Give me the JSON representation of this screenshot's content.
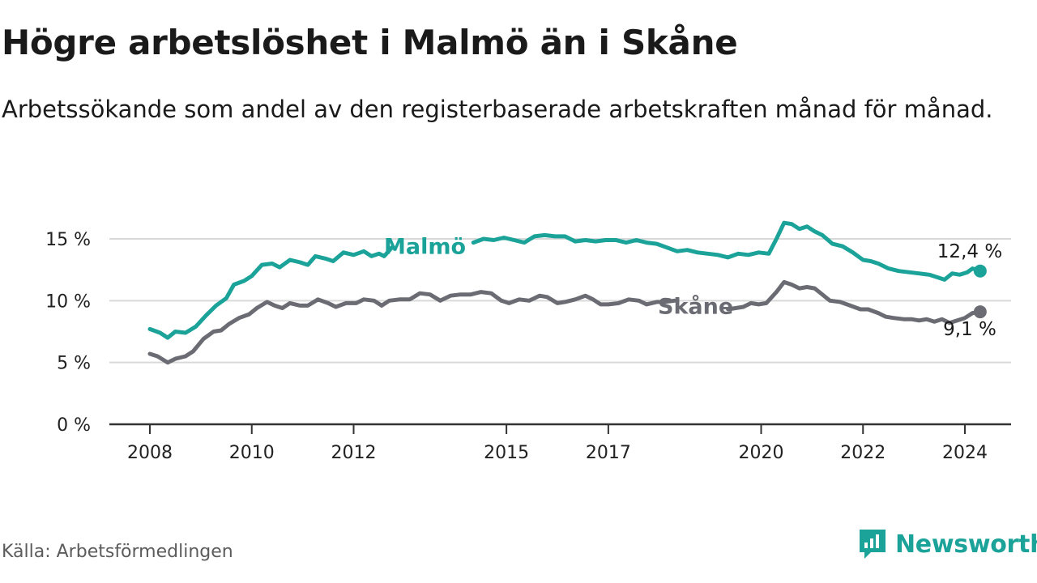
{
  "title": "Högre arbetslöshet i Malmö än i Skåne",
  "subtitle": "Arbetssökande som andel av den registerbaserade arbetskraften månad för månad.",
  "source": "Källa: Arbetsförmedlingen",
  "brand": {
    "name": "Newsworthy",
    "icon": "newsworthy-logo-icon"
  },
  "colors": {
    "malmo": "#1ba39a",
    "skane": "#6b6b73",
    "grid": "#d9d9d9",
    "axis": "#333333"
  },
  "chart_data": {
    "type": "line",
    "x_unit": "year",
    "xlim": [
      2007.6,
      2025.0
    ],
    "ylim": [
      0,
      16.5
    ],
    "y_ticks": [
      {
        "value": 0,
        "label": "0 %"
      },
      {
        "value": 5,
        "label": "5 %"
      },
      {
        "value": 10,
        "label": "10 %"
      },
      {
        "value": 15,
        "label": "15 %"
      }
    ],
    "x_ticks": [
      {
        "value": 2008,
        "label": "2008"
      },
      {
        "value": 2010,
        "label": "2010"
      },
      {
        "value": 2012,
        "label": "2012"
      },
      {
        "value": 2015,
        "label": "2015"
      },
      {
        "value": 2017,
        "label": "2017"
      },
      {
        "value": 2020,
        "label": "2020"
      },
      {
        "value": 2022,
        "label": "2022"
      },
      {
        "value": 2024,
        "label": "2024"
      }
    ],
    "grid": true,
    "series": [
      {
        "name": "Malmö",
        "label": "Malmö",
        "color": "#1ba39a",
        "end_label": "12,4 %",
        "points": [
          [
            2008.0,
            7.7
          ],
          [
            2008.2,
            7.4
          ],
          [
            2008.35,
            7.0
          ],
          [
            2008.5,
            7.5
          ],
          [
            2008.7,
            7.4
          ],
          [
            2008.9,
            7.9
          ],
          [
            2009.1,
            8.8
          ],
          [
            2009.3,
            9.6
          ],
          [
            2009.5,
            10.2
          ],
          [
            2009.65,
            11.3
          ],
          [
            2009.85,
            11.6
          ],
          [
            2010.0,
            12.0
          ],
          [
            2010.2,
            12.9
          ],
          [
            2010.4,
            13.0
          ],
          [
            2010.55,
            12.7
          ],
          [
            2010.75,
            13.3
          ],
          [
            2010.95,
            13.1
          ],
          [
            2011.1,
            12.9
          ],
          [
            2011.25,
            13.6
          ],
          [
            2011.45,
            13.4
          ],
          [
            2011.6,
            13.2
          ],
          [
            2011.8,
            13.9
          ],
          [
            2012.0,
            13.7
          ],
          [
            2012.2,
            14.0
          ],
          [
            2012.35,
            13.6
          ],
          [
            2012.5,
            13.8
          ],
          [
            2012.6,
            13.6
          ],
          [
            2012.75,
            14.3
          ],
          [
            2014.35,
            14.7
          ],
          [
            2014.55,
            15.0
          ],
          [
            2014.75,
            14.9
          ],
          [
            2014.95,
            15.1
          ],
          [
            2015.15,
            14.9
          ],
          [
            2015.35,
            14.7
          ],
          [
            2015.55,
            15.2
          ],
          [
            2015.75,
            15.3
          ],
          [
            2015.95,
            15.2
          ],
          [
            2016.15,
            15.2
          ],
          [
            2016.35,
            14.8
          ],
          [
            2016.55,
            14.9
          ],
          [
            2016.75,
            14.8
          ],
          [
            2016.95,
            14.9
          ],
          [
            2017.15,
            14.9
          ],
          [
            2017.35,
            14.7
          ],
          [
            2017.55,
            14.9
          ],
          [
            2017.75,
            14.7
          ],
          [
            2017.95,
            14.6
          ],
          [
            2018.15,
            14.3
          ],
          [
            2018.35,
            14.0
          ],
          [
            2018.55,
            14.1
          ],
          [
            2018.75,
            13.9
          ],
          [
            2018.95,
            13.8
          ],
          [
            2019.15,
            13.7
          ],
          [
            2019.35,
            13.5
          ],
          [
            2019.55,
            13.8
          ],
          [
            2019.75,
            13.7
          ],
          [
            2019.95,
            13.9
          ],
          [
            2020.15,
            13.8
          ],
          [
            2020.3,
            15.0
          ],
          [
            2020.45,
            16.3
          ],
          [
            2020.6,
            16.2
          ],
          [
            2020.75,
            15.8
          ],
          [
            2020.9,
            16.0
          ],
          [
            2021.05,
            15.6
          ],
          [
            2021.2,
            15.3
          ],
          [
            2021.4,
            14.6
          ],
          [
            2021.6,
            14.4
          ],
          [
            2021.8,
            13.9
          ],
          [
            2022.0,
            13.3
          ],
          [
            2022.15,
            13.2
          ],
          [
            2022.3,
            13.0
          ],
          [
            2022.5,
            12.6
          ],
          [
            2022.7,
            12.4
          ],
          [
            2022.9,
            12.3
          ],
          [
            2023.1,
            12.2
          ],
          [
            2023.3,
            12.1
          ],
          [
            2023.45,
            11.9
          ],
          [
            2023.6,
            11.7
          ],
          [
            2023.75,
            12.2
          ],
          [
            2023.9,
            12.1
          ],
          [
            2024.05,
            12.3
          ],
          [
            2024.15,
            12.6
          ],
          [
            2024.3,
            12.4
          ]
        ]
      },
      {
        "name": "Skåne",
        "label": "Skåne",
        "color": "#6b6b73",
        "end_label": "9,1 %",
        "points": [
          [
            2008.0,
            5.7
          ],
          [
            2008.15,
            5.5
          ],
          [
            2008.35,
            5.0
          ],
          [
            2008.5,
            5.3
          ],
          [
            2008.7,
            5.5
          ],
          [
            2008.85,
            5.9
          ],
          [
            2009.05,
            6.9
          ],
          [
            2009.25,
            7.5
          ],
          [
            2009.4,
            7.6
          ],
          [
            2009.55,
            8.1
          ],
          [
            2009.75,
            8.6
          ],
          [
            2009.95,
            8.9
          ],
          [
            2010.1,
            9.4
          ],
          [
            2010.3,
            9.9
          ],
          [
            2010.45,
            9.6
          ],
          [
            2010.6,
            9.4
          ],
          [
            2010.75,
            9.8
          ],
          [
            2010.95,
            9.6
          ],
          [
            2011.1,
            9.6
          ],
          [
            2011.3,
            10.1
          ],
          [
            2011.5,
            9.8
          ],
          [
            2011.65,
            9.5
          ],
          [
            2011.85,
            9.8
          ],
          [
            2012.05,
            9.8
          ],
          [
            2012.2,
            10.1
          ],
          [
            2012.4,
            10.0
          ],
          [
            2012.55,
            9.6
          ],
          [
            2012.7,
            10.0
          ],
          [
            2012.9,
            10.1
          ],
          [
            2013.1,
            10.1
          ],
          [
            2013.3,
            10.6
          ],
          [
            2013.5,
            10.5
          ],
          [
            2013.7,
            10.0
          ],
          [
            2013.9,
            10.4
          ],
          [
            2014.1,
            10.5
          ],
          [
            2014.3,
            10.5
          ],
          [
            2014.5,
            10.7
          ],
          [
            2014.7,
            10.6
          ],
          [
            2014.9,
            10.0
          ],
          [
            2015.05,
            9.8
          ],
          [
            2015.25,
            10.1
          ],
          [
            2015.45,
            10.0
          ],
          [
            2015.65,
            10.4
          ],
          [
            2015.8,
            10.3
          ],
          [
            2016.0,
            9.8
          ],
          [
            2016.15,
            9.9
          ],
          [
            2016.35,
            10.1
          ],
          [
            2016.55,
            10.4
          ],
          [
            2016.7,
            10.1
          ],
          [
            2016.85,
            9.7
          ],
          [
            2017.0,
            9.7
          ],
          [
            2017.2,
            9.8
          ],
          [
            2017.4,
            10.1
          ],
          [
            2017.6,
            10.0
          ],
          [
            2017.75,
            9.7
          ],
          [
            2017.95,
            9.9
          ],
          [
            2018.1,
            9.9
          ],
          [
            2018.3,
            10.0
          ],
          [
            2019.35,
            9.3
          ],
          [
            2019.5,
            9.4
          ],
          [
            2019.65,
            9.5
          ],
          [
            2019.8,
            9.8
          ],
          [
            2019.95,
            9.7
          ],
          [
            2020.1,
            9.8
          ],
          [
            2020.3,
            10.7
          ],
          [
            2020.45,
            11.5
          ],
          [
            2020.6,
            11.3
          ],
          [
            2020.75,
            11.0
          ],
          [
            2020.9,
            11.1
          ],
          [
            2021.05,
            11.0
          ],
          [
            2021.2,
            10.5
          ],
          [
            2021.35,
            10.0
          ],
          [
            2021.55,
            9.9
          ],
          [
            2021.75,
            9.6
          ],
          [
            2021.95,
            9.3
          ],
          [
            2022.1,
            9.3
          ],
          [
            2022.3,
            9.0
          ],
          [
            2022.45,
            8.7
          ],
          [
            2022.6,
            8.6
          ],
          [
            2022.8,
            8.5
          ],
          [
            2022.95,
            8.5
          ],
          [
            2023.1,
            8.4
          ],
          [
            2023.25,
            8.5
          ],
          [
            2023.4,
            8.3
          ],
          [
            2023.55,
            8.5
          ],
          [
            2023.7,
            8.2
          ],
          [
            2023.85,
            8.4
          ],
          [
            2024.0,
            8.6
          ],
          [
            2024.15,
            9.0
          ],
          [
            2024.3,
            9.1
          ]
        ]
      }
    ]
  }
}
